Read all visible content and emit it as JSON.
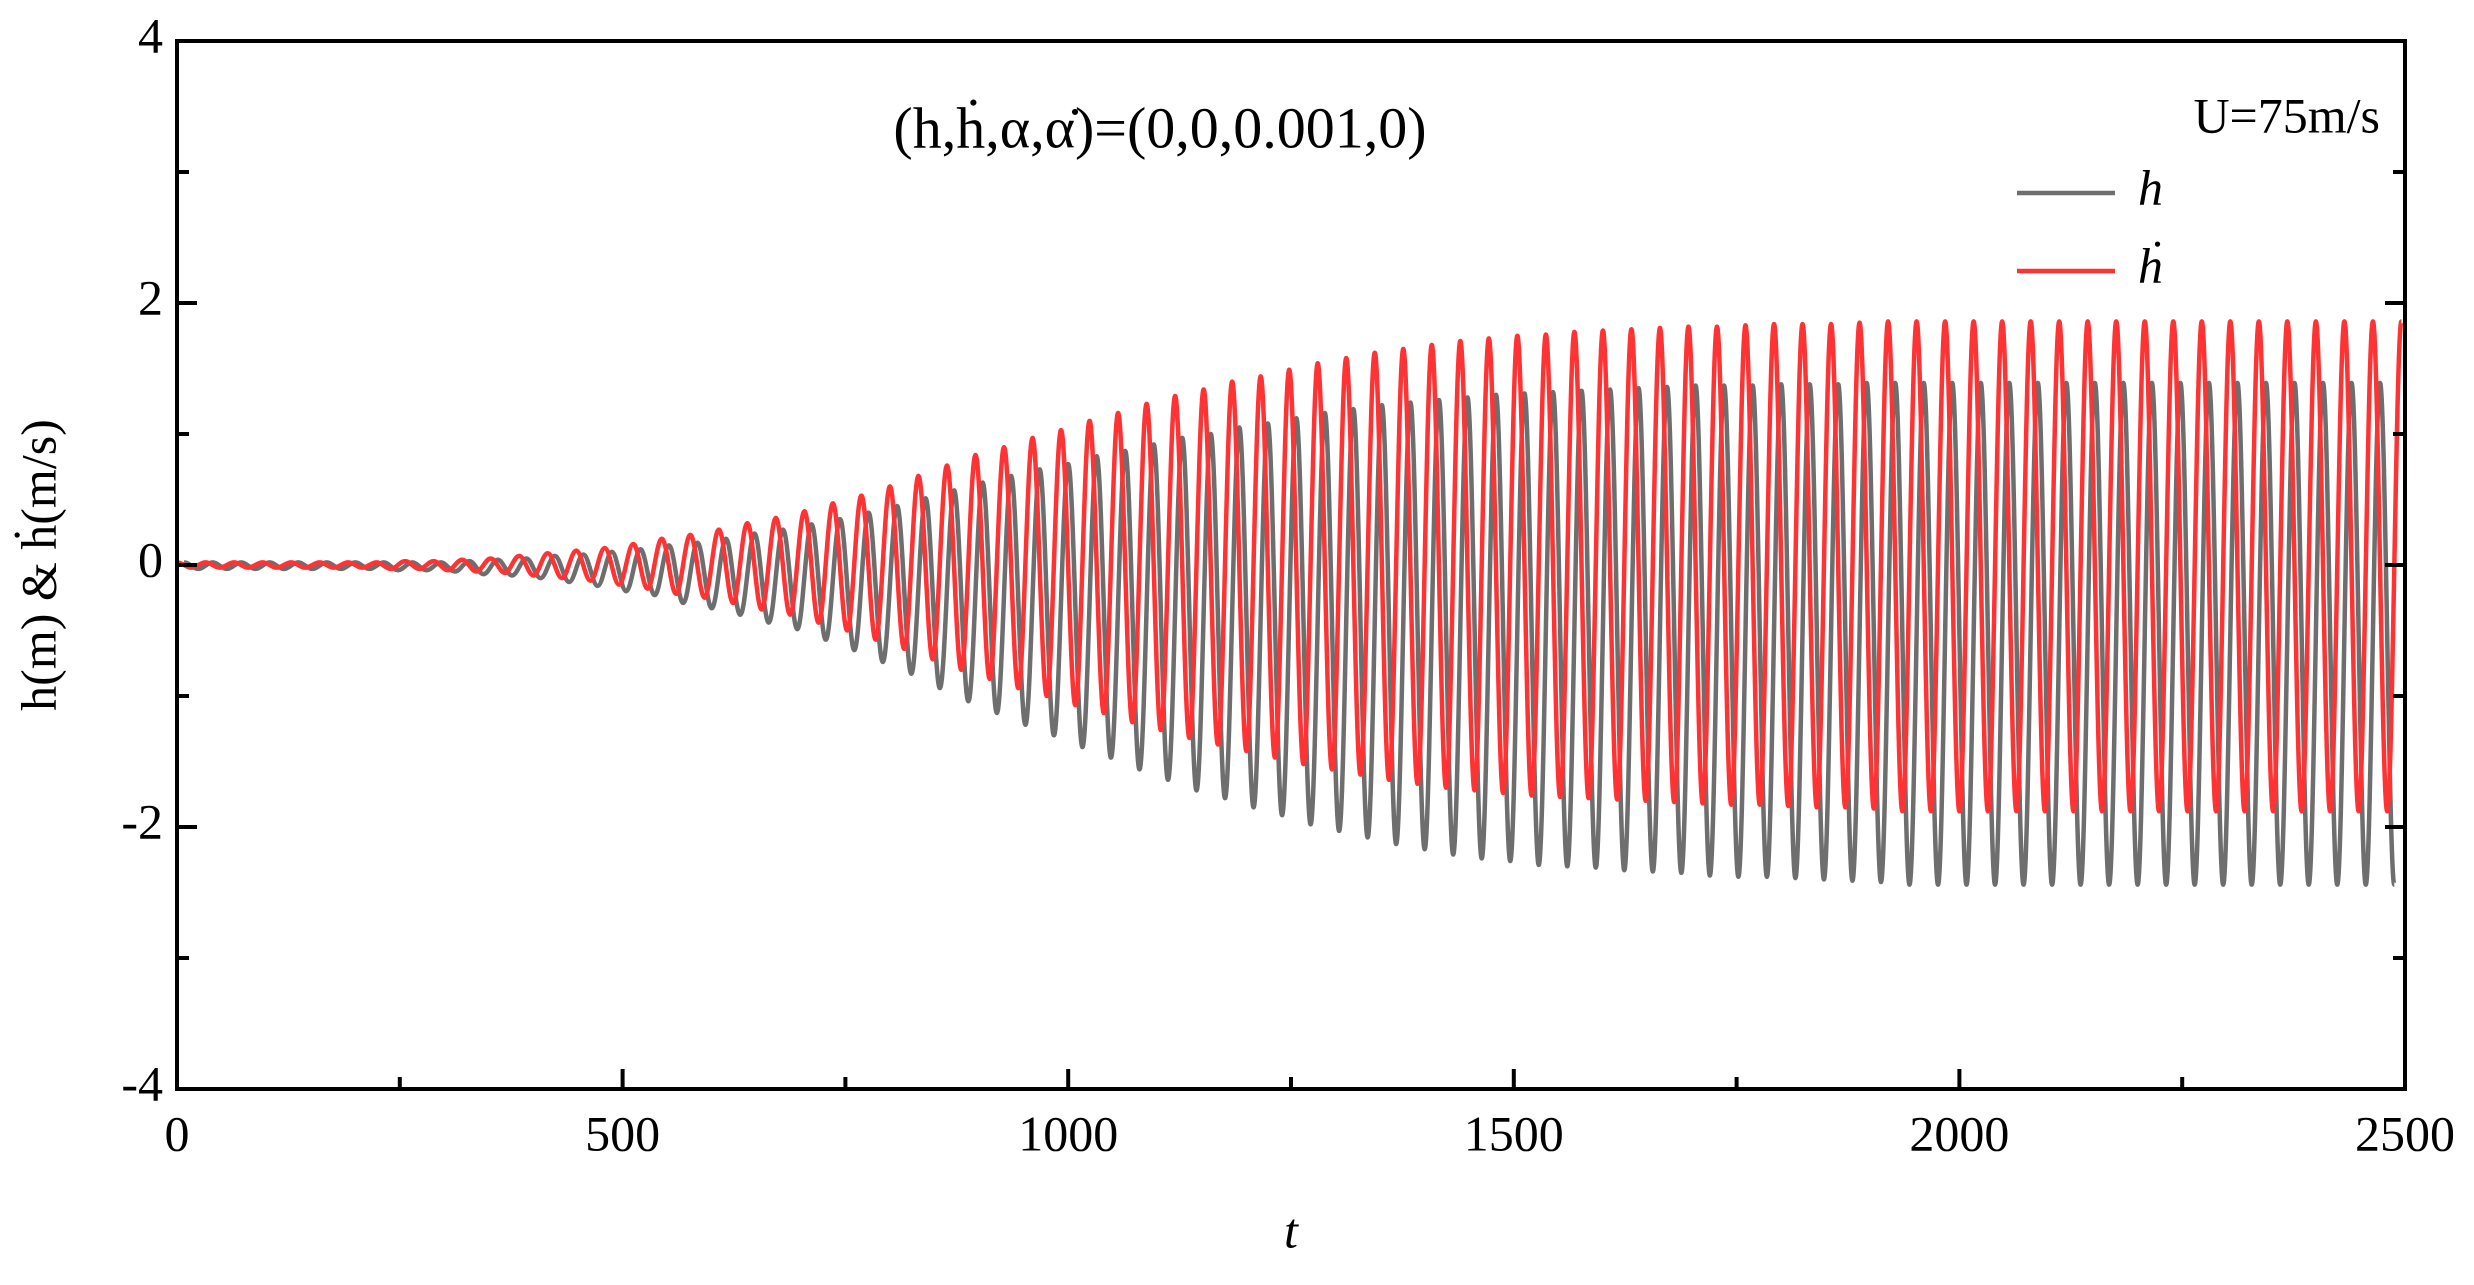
{
  "chart_data": {
    "type": "line",
    "annotations": [
      "(h,ḣ,α,α̇)=(0,0,0.001,0)",
      "U=75m/s"
    ],
    "xlabel": "t",
    "ylabel": "h(m) & ḣ(m/s)",
    "xlim": [
      0,
      2500
    ],
    "ylim": [
      -4,
      4
    ],
    "xticks": [
      0,
      500,
      1000,
      1500,
      2000,
      2500
    ],
    "yticks": [
      -4,
      -2,
      0,
      2,
      4
    ],
    "xminorticks": [
      250,
      750,
      1250,
      1750,
      2250
    ],
    "yminorticks": [
      -3,
      -1,
      1,
      3
    ],
    "grid": false,
    "legend": "upper right",
    "series": [
      {
        "name": "h",
        "color": "#6e6e6e",
        "x": [
          8,
          24,
          40,
          56,
          72,
          88,
          104,
          120,
          136,
          152,
          168,
          184,
          200,
          216,
          232,
          248,
          264,
          280,
          296,
          312,
          328,
          344,
          360,
          376,
          392,
          408,
          424,
          440,
          456,
          472,
          488,
          504,
          520,
          536,
          552,
          568,
          584,
          600,
          616,
          632,
          648,
          664,
          680,
          696,
          712,
          728,
          744,
          760,
          776,
          792,
          808,
          824,
          840,
          856,
          872,
          888,
          904,
          920,
          936,
          952,
          968,
          984,
          1000,
          1016,
          1032,
          1048,
          1064,
          1080,
          1096,
          1112,
          1128,
          1144,
          1160,
          1176,
          1192,
          1208,
          1224,
          1240,
          1256,
          1272,
          1288,
          1304,
          1320,
          1336,
          1352,
          1368,
          1384,
          1400,
          1416,
          1432,
          1448,
          1464,
          1480,
          1496,
          1512,
          1528,
          1544,
          1560,
          1576,
          1592,
          1608,
          1624,
          1640,
          1656,
          1672,
          1688,
          1704,
          1720,
          1736,
          1752,
          1768,
          1784,
          1800,
          1816,
          1832,
          1848,
          1864,
          1880,
          1896,
          1912,
          1928,
          1944,
          1960,
          1976,
          1992,
          2008,
          2024,
          2040,
          2056,
          2072,
          2088,
          2104,
          2120,
          2136,
          2152,
          2168,
          2184,
          2200,
          2216,
          2232,
          2248,
          2264,
          2280,
          2296,
          2312,
          2328,
          2344,
          2360,
          2376,
          2392,
          2408,
          2424,
          2440,
          2456,
          2472,
          2488
        ],
        "values": [
          0.02,
          -0.03,
          0.02,
          -0.03,
          0.02,
          -0.03,
          0.02,
          -0.03,
          0.02,
          -0.03,
          0.02,
          -0.03,
          0.02,
          -0.03,
          0.02,
          -0.04,
          0.02,
          -0.04,
          0.02,
          -0.05,
          0.03,
          -0.07,
          0.04,
          -0.08,
          0.05,
          -0.1,
          0.07,
          -0.13,
          0.08,
          -0.16,
          0.1,
          -0.2,
          0.12,
          -0.23,
          0.15,
          -0.29,
          0.17,
          -0.33,
          0.2,
          -0.38,
          0.24,
          -0.44,
          0.27,
          -0.49,
          0.31,
          -0.57,
          0.35,
          -0.65,
          0.4,
          -0.74,
          0.45,
          -0.83,
          0.51,
          -0.94,
          0.57,
          -1.04,
          0.63,
          -1.13,
          0.68,
          -1.22,
          0.73,
          -1.3,
          0.77,
          -1.39,
          0.83,
          -1.47,
          0.87,
          -1.56,
          0.92,
          -1.64,
          0.97,
          -1.72,
          1.0,
          -1.78,
          1.05,
          -1.85,
          1.08,
          -1.91,
          1.12,
          -1.98,
          1.16,
          -2.03,
          1.19,
          -2.08,
          1.22,
          -2.13,
          1.24,
          -2.17,
          1.26,
          -2.21,
          1.28,
          -2.24,
          1.3,
          -2.26,
          1.31,
          -2.29,
          1.32,
          -2.3,
          1.33,
          -2.31,
          1.34,
          -2.33,
          1.35,
          -2.34,
          1.36,
          -2.35,
          1.37,
          -2.37,
          1.37,
          -2.38,
          1.37,
          -2.38,
          1.38,
          -2.39,
          1.38,
          -2.4,
          1.38,
          -2.41,
          1.39,
          -2.42,
          1.39,
          -2.44,
          1.39,
          -2.44,
          1.39,
          -2.44,
          1.39,
          -2.44,
          1.39,
          -2.44,
          1.39,
          -2.44,
          1.39,
          -2.44,
          1.39,
          -2.44,
          1.39,
          -2.44,
          1.39,
          -2.44,
          1.39,
          -2.44,
          1.39,
          -2.44,
          1.39,
          -2.44,
          1.39,
          -2.44,
          1.39,
          -2.44,
          1.39,
          -2.44,
          1.39,
          -2.44,
          1.39,
          -2.44
        ]
      },
      {
        "name": "ḣ",
        "color": "#ff3333",
        "x": [
          0,
          16,
          32,
          48,
          64,
          80,
          96,
          112,
          128,
          144,
          160,
          176,
          192,
          208,
          224,
          240,
          256,
          272,
          288,
          304,
          320,
          336,
          352,
          368,
          384,
          400,
          416,
          432,
          448,
          464,
          480,
          496,
          512,
          528,
          544,
          560,
          576,
          592,
          608,
          624,
          640,
          656,
          672,
          688,
          704,
          720,
          736,
          752,
          768,
          784,
          800,
          816,
          832,
          848,
          864,
          880,
          896,
          912,
          928,
          944,
          960,
          976,
          992,
          1008,
          1024,
          1040,
          1056,
          1072,
          1088,
          1104,
          1120,
          1136,
          1152,
          1168,
          1184,
          1200,
          1216,
          1232,
          1248,
          1264,
          1280,
          1296,
          1312,
          1328,
          1344,
          1360,
          1376,
          1392,
          1408,
          1424,
          1440,
          1456,
          1472,
          1488,
          1504,
          1520,
          1536,
          1552,
          1568,
          1584,
          1600,
          1616,
          1632,
          1648,
          1664,
          1680,
          1696,
          1712,
          1728,
          1744,
          1760,
          1776,
          1792,
          1808,
          1824,
          1840,
          1856,
          1872,
          1888,
          1904,
          1920,
          1936,
          1952,
          1968,
          1984,
          2000,
          2016,
          2032,
          2048,
          2064,
          2080,
          2096,
          2112,
          2128,
          2144,
          2160,
          2176,
          2192,
          2208,
          2224,
          2240,
          2256,
          2272,
          2288,
          2304,
          2320,
          2336,
          2352,
          2368,
          2384,
          2400,
          2416,
          2432,
          2448,
          2464,
          2480,
          2496
        ],
        "values": [
          0.02,
          -0.02,
          0.02,
          -0.02,
          0.02,
          -0.02,
          0.02,
          -0.02,
          0.02,
          -0.02,
          0.02,
          -0.02,
          0.02,
          -0.02,
          0.02,
          -0.03,
          0.03,
          -0.03,
          0.03,
          -0.04,
          0.04,
          -0.05,
          0.05,
          -0.06,
          0.07,
          -0.08,
          0.09,
          -0.1,
          0.11,
          -0.12,
          0.13,
          -0.15,
          0.16,
          -0.18,
          0.2,
          -0.22,
          0.23,
          -0.25,
          0.27,
          -0.29,
          0.32,
          -0.34,
          0.36,
          -0.38,
          0.41,
          -0.44,
          0.47,
          -0.5,
          0.53,
          -0.57,
          0.6,
          -0.64,
          0.68,
          -0.72,
          0.76,
          -0.8,
          0.84,
          -0.87,
          0.9,
          -0.94,
          0.97,
          -1.0,
          1.03,
          -1.07,
          1.1,
          -1.13,
          1.16,
          -1.2,
          1.23,
          -1.26,
          1.29,
          -1.32,
          1.34,
          -1.37,
          1.4,
          -1.42,
          1.44,
          -1.47,
          1.49,
          -1.52,
          1.54,
          -1.56,
          1.58,
          -1.6,
          1.62,
          -1.64,
          1.65,
          -1.67,
          1.68,
          -1.7,
          1.71,
          -1.72,
          1.73,
          -1.74,
          1.75,
          -1.76,
          1.76,
          -1.77,
          1.78,
          -1.78,
          1.79,
          -1.79,
          1.8,
          -1.8,
          1.81,
          -1.81,
          1.82,
          -1.82,
          1.82,
          -1.83,
          1.83,
          -1.83,
          1.84,
          -1.84,
          1.84,
          -1.85,
          1.84,
          -1.85,
          1.85,
          -1.86,
          1.86,
          -1.88,
          1.86,
          -1.88,
          1.86,
          -1.88,
          1.86,
          -1.88,
          1.86,
          -1.88,
          1.86,
          -1.88,
          1.86,
          -1.88,
          1.86,
          -1.88,
          1.86,
          -1.88,
          1.86,
          -1.88,
          1.86,
          -1.88,
          1.86,
          -1.88,
          1.86,
          -1.88,
          1.86,
          -1.88,
          1.86,
          -1.88,
          1.86,
          -1.88,
          1.86,
          -1.88,
          1.86,
          -1.88,
          1.86
        ]
      }
    ]
  }
}
